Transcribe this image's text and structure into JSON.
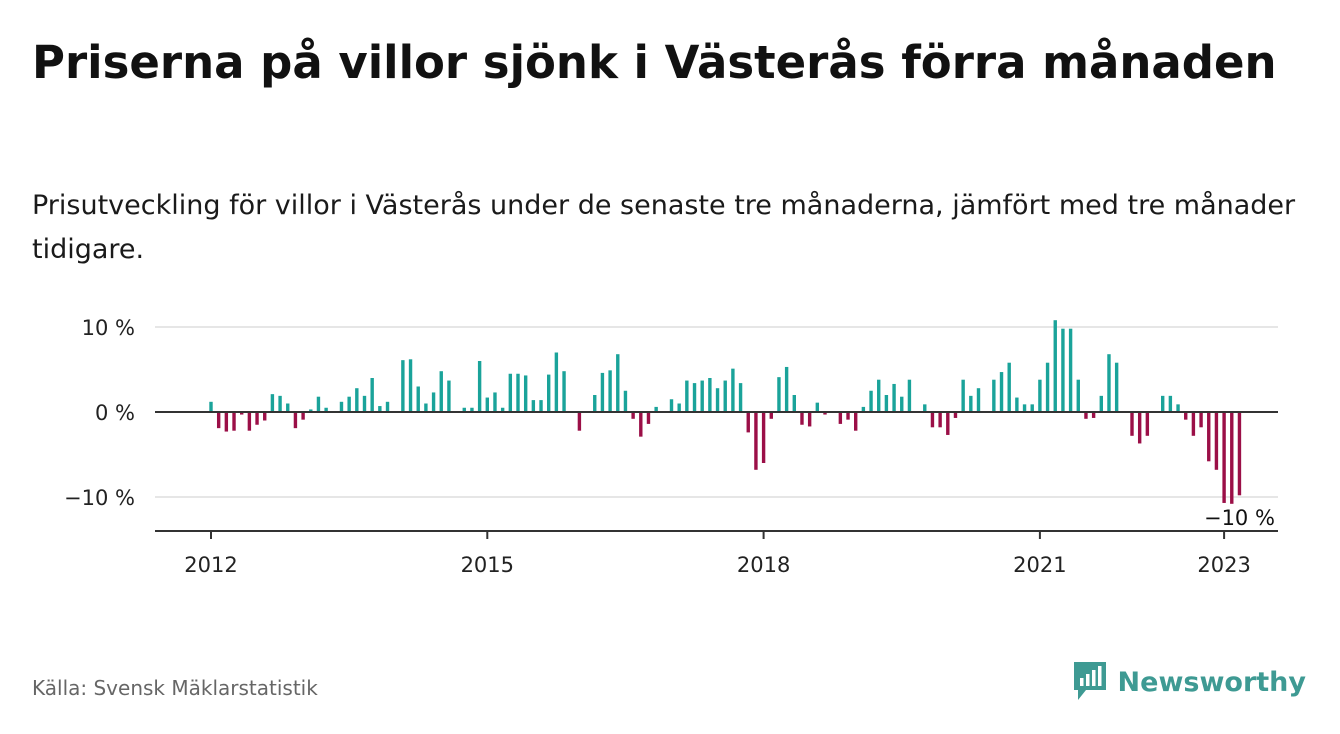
{
  "header": {
    "title": "Priserna på villor sjönk i Västerås förra månaden",
    "subtitle": "Prisutveckling för villor i Västerås under de senaste tre månaderna, jämfört med tre månader tidigare."
  },
  "footer": {
    "source": "Källa: Svensk Mäklarstatistik",
    "brand": "Newsworthy",
    "brand_icon": "newsworthy-logo-icon"
  },
  "colors": {
    "positive": "#1aa39a",
    "negative": "#9b0f47",
    "brand": "#3e9a93",
    "grid": "#dddddd",
    "axis": "#333333"
  },
  "chart_data": {
    "type": "bar",
    "title": "",
    "xlabel": "",
    "ylabel": "",
    "ylim": [
      -14,
      11
    ],
    "y_ticks": [
      {
        "value": 10,
        "label": "10 %"
      },
      {
        "value": 0,
        "label": "0 %"
      },
      {
        "value": -10,
        "label": "−10 %"
      }
    ],
    "x_ticks": [
      {
        "year": 2012,
        "label": "2012"
      },
      {
        "year": 2015,
        "label": "2015"
      },
      {
        "year": 2018,
        "label": "2018"
      },
      {
        "year": 2021,
        "label": "2021"
      },
      {
        "year": 2023,
        "label": "2023"
      }
    ],
    "x_start": "2012-01",
    "frequency": "monthly",
    "annotation": {
      "label": "−10 %",
      "value": -10
    },
    "values": [
      1.2,
      -1.9,
      -2.3,
      -2.2,
      -0.3,
      -2.2,
      -1.5,
      -1.0,
      2.1,
      1.9,
      1.0,
      -1.9,
      -0.9,
      0.3,
      1.8,
      0.5,
      0.0,
      1.2,
      1.8,
      2.8,
      1.9,
      4.0,
      0.7,
      1.2,
      0.0,
      6.1,
      6.2,
      3.0,
      1.0,
      2.3,
      4.8,
      3.7,
      0.0,
      0.5,
      0.5,
      6.0,
      1.7,
      2.3,
      0.5,
      4.5,
      4.5,
      4.3,
      1.4,
      1.4,
      4.4,
      7.0,
      4.8,
      0.0,
      -2.2,
      0.0,
      2.0,
      4.6,
      4.9,
      6.8,
      2.5,
      -0.8,
      -2.9,
      -1.4,
      0.6,
      0.0,
      1.5,
      1.0,
      3.7,
      3.4,
      3.7,
      4.0,
      2.8,
      3.7,
      5.1,
      3.4,
      -2.4,
      -6.8,
      -6.0,
      -0.8,
      4.1,
      5.3,
      2.0,
      -1.5,
      -1.7,
      1.1,
      -0.3,
      0.0,
      -1.4,
      -0.9,
      -2.2,
      0.6,
      2.5,
      3.8,
      2.0,
      3.3,
      1.8,
      3.8,
      0.0,
      0.9,
      -1.8,
      -1.8,
      -2.7,
      -0.7,
      3.8,
      1.9,
      2.8,
      0.0,
      3.8,
      4.7,
      5.8,
      1.7,
      0.9,
      0.9,
      3.8,
      5.8,
      10.8,
      9.8,
      9.8,
      3.8,
      -0.8,
      -0.7,
      1.9,
      6.8,
      5.8,
      0.0,
      -2.8,
      -3.7,
      -2.8,
      0.0,
      1.9,
      1.9,
      0.9,
      -0.9,
      -2.8,
      -1.8,
      -5.8,
      -6.8,
      -10.7,
      -10.8,
      -9.8
    ]
  }
}
